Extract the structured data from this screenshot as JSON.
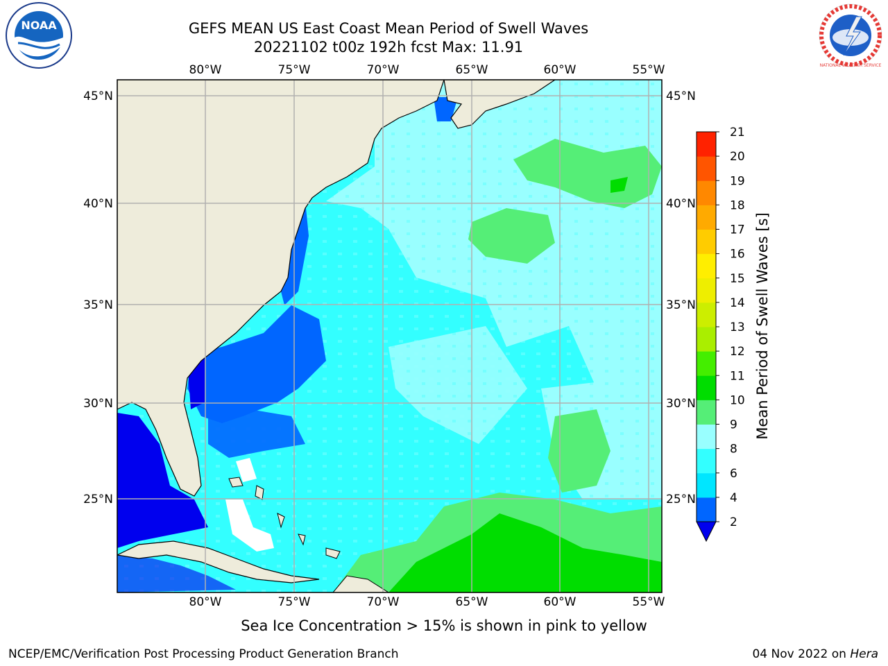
{
  "title": {
    "line1": "GEFS MEAN US East Coast Mean Period of Swell Waves",
    "line2": "20221102 t00z 192h fcst   Max: 11.91"
  },
  "map": {
    "lon_top_labels": [
      "80°W",
      "75°W",
      "70°W",
      "65°W",
      "60°W",
      "55°W"
    ],
    "lon_bottom_labels": [
      "80°W",
      "75°W",
      "70°W",
      "65°W",
      "60°W",
      "55°W"
    ],
    "lat_left_labels": [
      "45°N",
      "40°N",
      "35°N",
      "30°N",
      "25°N"
    ],
    "lat_right_labels": [
      "45°N",
      "40°N",
      "35°N",
      "30°N",
      "25°N"
    ],
    "land_color": "#eeecdb",
    "grid_color": "#b0b0b0"
  },
  "colorbar": {
    "label": "Mean Period of Swell Waves [s]",
    "ticks": [
      "2",
      "4",
      "6",
      "8",
      "9",
      "10",
      "11",
      "12",
      "13",
      "14",
      "15",
      "16",
      "17",
      "18",
      "19",
      "20",
      "21"
    ],
    "colors": [
      "#0066ff",
      "#00e6ff",
      "#33ffff",
      "#99ffff",
      "#55ee77",
      "#00dd00",
      "#44ee00",
      "#aaee00",
      "#ccee00",
      "#eeee00",
      "#ffee00",
      "#ffcc00",
      "#ffaa00",
      "#ff8800",
      "#ff5500",
      "#ff2200",
      "#ff0000"
    ],
    "under_color": "#0000ee"
  },
  "note": "Sea Ice Concentration > 15% is shown in pink to yellow",
  "footer": {
    "left": "NCEP/EMC/Verification Post Processing Product Generation Branch",
    "date": "04 Nov 2022 on ",
    "machine": "Hera"
  },
  "logos": {
    "left_text": "NOAA",
    "right_text": "NATIONAL WEATHER SERVICE"
  }
}
